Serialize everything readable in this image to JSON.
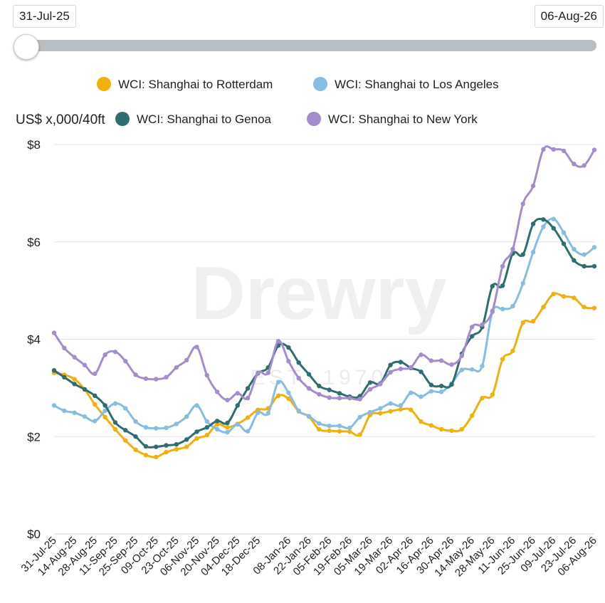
{
  "range": {
    "start_label": "31-Jul-25",
    "end_label": "06-Aug-26"
  },
  "chart_data": {
    "type": "line",
    "ylabel": "US$ x,000/40ft",
    "ylim": [
      0,
      8
    ],
    "yticks": [
      0,
      2,
      4,
      6,
      8
    ],
    "ytick_labels": [
      "$0",
      "$2",
      "$4",
      "$6",
      "$8"
    ],
    "grid": true,
    "legend_position": "top",
    "watermark": "Drewry",
    "watermark_sub": "EST. 1970",
    "categories": [
      "31-Jul-25",
      "07-Aug-25",
      "14-Aug-25",
      "21-Aug-25",
      "28-Aug-25",
      "04-Sep-25",
      "11-Sep-25",
      "18-Sep-25",
      "25-Sep-25",
      "02-Oct-25",
      "09-Oct-25",
      "16-Oct-25",
      "23-Oct-25",
      "30-Oct-25",
      "06-Nov-25",
      "13-Nov-25",
      "20-Nov-25",
      "27-Nov-25",
      "04-Dec-25",
      "11-Dec-25",
      "18-Dec-25",
      "25-Dec-25",
      "01-Jan-26",
      "08-Jan-26",
      "15-Jan-26",
      "22-Jan-26",
      "29-Jan-26",
      "05-Feb-26",
      "12-Feb-26",
      "19-Feb-26",
      "26-Feb-26",
      "05-Mar-26",
      "12-Mar-26",
      "19-Mar-26",
      "26-Mar-26",
      "02-Apr-26",
      "09-Apr-26",
      "16-Apr-26",
      "23-Apr-26",
      "30-Apr-26",
      "07-May-26",
      "14-May-26",
      "21-May-26",
      "28-May-26",
      "04-Jun-26",
      "11-Jun-26",
      "18-Jun-26",
      "25-Jun-26",
      "02-Jul-26",
      "09-Jul-26",
      "16-Jul-26",
      "23-Jul-26",
      "30-Jul-26",
      "06-Aug-26"
    ],
    "tick_labels": [
      "31-Jul-25",
      "14-Aug-25",
      "28-Aug-25",
      "11-Sep-25",
      "25-Sep-25",
      "09-Oct-25",
      "23-Oct-25",
      "06-Nov-25",
      "20-Nov-25",
      "04-Dec-25",
      "18-Dec-25",
      "08-Jan-26",
      "22-Jan-26",
      "05-Feb-26",
      "19-Feb-26",
      "05-Mar-26",
      "19-Mar-26",
      "02-Apr-26",
      "16-Apr-26",
      "30-Apr-26",
      "14-May-26",
      "28-May-26",
      "11-Jun-26",
      "25-Jun-26",
      "09-Jul-26",
      "23-Jul-26",
      "06-Aug-26"
    ],
    "series": [
      {
        "name": "WCI: Shanghai to Rotterdam",
        "color": "#f2b00a",
        "values": [
          3.31,
          3.27,
          3.18,
          2.97,
          2.66,
          2.4,
          2.15,
          1.92,
          1.73,
          1.62,
          1.58,
          1.68,
          1.74,
          1.79,
          1.96,
          2.03,
          2.25,
          2.19,
          2.26,
          2.39,
          2.55,
          2.58,
          2.84,
          2.78,
          2.52,
          2.41,
          2.15,
          2.12,
          2.11,
          2.1,
          2.04,
          2.44,
          2.48,
          2.52,
          2.56,
          2.55,
          2.31,
          2.23,
          2.15,
          2.12,
          2.15,
          2.43,
          2.79,
          2.86,
          3.59,
          3.76,
          4.34,
          4.37,
          4.66,
          4.93,
          4.88,
          4.85,
          4.66,
          4.64
        ]
      },
      {
        "name": "WCI: Shanghai to Los Angeles",
        "color": "#86bde0",
        "values": [
          2.64,
          2.53,
          2.49,
          2.41,
          2.32,
          2.53,
          2.68,
          2.58,
          2.31,
          2.19,
          2.17,
          2.18,
          2.26,
          2.41,
          2.64,
          2.31,
          2.15,
          2.09,
          2.25,
          2.11,
          2.49,
          2.48,
          3.12,
          2.9,
          2.53,
          2.42,
          2.27,
          2.22,
          2.22,
          2.18,
          2.4,
          2.5,
          2.58,
          2.68,
          2.64,
          2.9,
          2.82,
          2.93,
          2.92,
          3.09,
          3.37,
          3.38,
          3.45,
          4.56,
          4.62,
          4.68,
          5.15,
          5.79,
          6.31,
          6.47,
          6.19,
          5.85,
          5.74,
          5.89
        ]
      },
      {
        "name": "WCI: Shanghai to Genoa",
        "color": "#2e6d70",
        "values": [
          3.36,
          3.22,
          3.08,
          2.97,
          2.84,
          2.64,
          2.29,
          2.13,
          2.0,
          1.8,
          1.79,
          1.82,
          1.84,
          1.94,
          2.1,
          2.19,
          2.32,
          2.28,
          2.64,
          2.99,
          3.3,
          3.42,
          3.87,
          3.83,
          3.52,
          3.28,
          3.04,
          2.96,
          2.89,
          2.82,
          2.83,
          3.11,
          3.09,
          3.47,
          3.53,
          3.41,
          3.33,
          3.06,
          3.04,
          3.07,
          3.7,
          4.06,
          4.25,
          5.09,
          5.1,
          5.76,
          5.74,
          6.37,
          6.46,
          6.28,
          5.96,
          5.62,
          5.5,
          5.5
        ]
      },
      {
        "name": "WCI: Shanghai to New York",
        "color": "#a58ccc",
        "values": [
          4.13,
          3.82,
          3.63,
          3.47,
          3.29,
          3.68,
          3.74,
          3.55,
          3.27,
          3.19,
          3.18,
          3.22,
          3.42,
          3.57,
          3.84,
          3.26,
          2.92,
          2.75,
          2.89,
          2.79,
          3.31,
          3.31,
          3.96,
          3.55,
          3.2,
          2.99,
          2.87,
          2.8,
          2.79,
          2.79,
          2.77,
          2.97,
          3.08,
          3.32,
          3.39,
          3.42,
          3.68,
          3.56,
          3.56,
          3.48,
          3.66,
          4.25,
          4.3,
          4.58,
          5.5,
          5.85,
          6.78,
          7.15,
          7.9,
          7.9,
          7.87,
          7.6,
          7.57,
          7.89
        ]
      }
    ]
  }
}
